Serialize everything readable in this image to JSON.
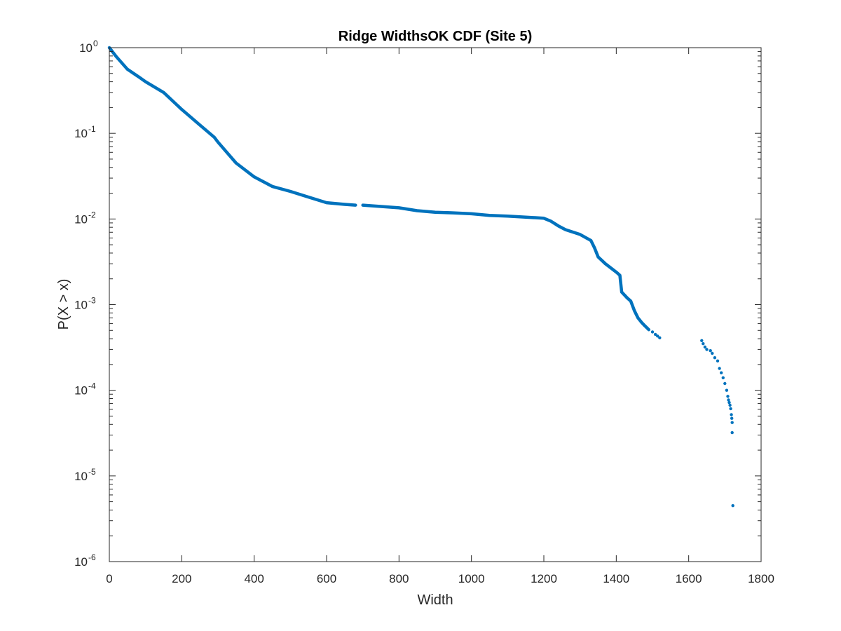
{
  "chart_data": {
    "type": "scatter",
    "title": "Ridge WidthsOK CDF (Site 5)",
    "xlabel": "Width",
    "ylabel": "P(X > x)",
    "xlim": [
      0,
      1800
    ],
    "ylim": [
      1e-06,
      1
    ],
    "yscale": "log",
    "grid": false,
    "legend": "none",
    "marker_color": "#0072BD",
    "x_ticks": [
      "0",
      "200",
      "400",
      "600",
      "800",
      "1000",
      "1200",
      "1400",
      "1600",
      "1800"
    ],
    "y_ticks": [
      {
        "base": "10",
        "exp": "0"
      },
      {
        "base": "10",
        "exp": "-1"
      },
      {
        "base": "10",
        "exp": "-2"
      },
      {
        "base": "10",
        "exp": "-3"
      },
      {
        "base": "10",
        "exp": "-4"
      },
      {
        "base": "10",
        "exp": "-5"
      },
      {
        "base": "10",
        "exp": "-6"
      }
    ],
    "curve_segments": [
      [
        [
          0,
          1.0
        ],
        [
          20,
          0.78
        ],
        [
          50,
          0.56
        ],
        [
          80,
          0.46
        ],
        [
          100,
          0.4
        ],
        [
          150,
          0.3
        ],
        [
          200,
          0.19
        ],
        [
          250,
          0.125
        ],
        [
          290,
          0.09
        ],
        [
          300,
          0.079
        ],
        [
          350,
          0.045
        ],
        [
          400,
          0.031
        ],
        [
          450,
          0.024
        ],
        [
          500,
          0.021
        ],
        [
          550,
          0.018
        ],
        [
          600,
          0.0155
        ],
        [
          650,
          0.0148
        ],
        [
          680,
          0.0145
        ]
      ],
      [
        [
          700,
          0.0145
        ],
        [
          750,
          0.014
        ],
        [
          800,
          0.0135
        ],
        [
          850,
          0.0125
        ],
        [
          900,
          0.012
        ],
        [
          950,
          0.0118
        ],
        [
          1000,
          0.0115
        ],
        [
          1050,
          0.011
        ],
        [
          1100,
          0.0108
        ],
        [
          1150,
          0.0105
        ],
        [
          1200,
          0.0102
        ],
        [
          1220,
          0.0094
        ],
        [
          1240,
          0.0083
        ],
        [
          1260,
          0.0075
        ],
        [
          1300,
          0.0066
        ],
        [
          1330,
          0.0056
        ],
        [
          1340,
          0.0046
        ],
        [
          1350,
          0.0036
        ],
        [
          1370,
          0.003
        ],
        [
          1400,
          0.0024
        ],
        [
          1410,
          0.0022
        ],
        [
          1415,
          0.0014
        ],
        [
          1430,
          0.0012
        ],
        [
          1440,
          0.0011
        ],
        [
          1450,
          0.00085
        ],
        [
          1460,
          0.0007
        ],
        [
          1470,
          0.00062
        ],
        [
          1480,
          0.00056
        ],
        [
          1490,
          0.00051
        ]
      ]
    ],
    "points": [
      [
        1500,
        0.00048
      ],
      [
        1508,
        0.00045
      ],
      [
        1514,
        0.00043
      ],
      [
        1520,
        0.00041
      ],
      [
        1636,
        0.00038
      ],
      [
        1640,
        0.00035
      ],
      [
        1645,
        0.00032
      ],
      [
        1650,
        0.0003
      ],
      [
        1660,
        0.00029
      ],
      [
        1665,
        0.00027
      ],
      [
        1672,
        0.00024
      ],
      [
        1680,
        0.00022
      ],
      [
        1685,
        0.00018
      ],
      [
        1690,
        0.00016
      ],
      [
        1695,
        0.00014
      ],
      [
        1700,
        0.00012
      ],
      [
        1705,
        0.0001
      ],
      [
        1708,
        8.5e-05
      ],
      [
        1710,
        7.7e-05
      ],
      [
        1712,
        7.2e-05
      ],
      [
        1714,
        6.7e-05
      ],
      [
        1716,
        6.1e-05
      ],
      [
        1718,
        5.2e-05
      ],
      [
        1719,
        4.7e-05
      ],
      [
        1720,
        4.2e-05
      ],
      [
        1720,
        3.2e-05
      ],
      [
        1722,
        4.5e-06
      ]
    ]
  }
}
